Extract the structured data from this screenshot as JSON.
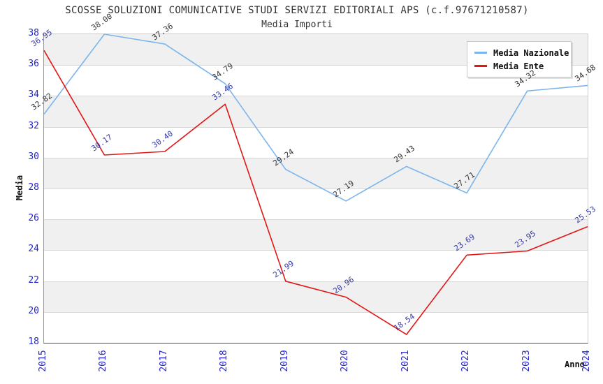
{
  "title": "SCOSSE SOLUZIONI COMUNICATIVE STUDI SERVIZI EDITORIALI APS (c.f.97671210587)",
  "subtitle": "Media Importi",
  "chart_data": {
    "type": "line",
    "x": [
      2015,
      2016,
      2017,
      2018,
      2019,
      2020,
      2021,
      2022,
      2023,
      2024
    ],
    "series": [
      {
        "name": "Media Nazionale",
        "color": "#7cb5ec",
        "label_color": "#333333",
        "values": [
          32.82,
          38.0,
          37.36,
          34.79,
          29.24,
          27.19,
          29.43,
          27.71,
          34.32,
          34.68
        ]
      },
      {
        "name": "Media Ente",
        "color": "#e01717",
        "label_color": "#3539a8",
        "values": [
          36.95,
          30.17,
          30.4,
          33.46,
          21.99,
          20.96,
          18.54,
          23.69,
          23.95,
          25.53
        ]
      }
    ],
    "xlabel": "Anno",
    "ylabel": "Media",
    "ylim": [
      18,
      38
    ],
    "ytick_step": 2,
    "grid": true,
    "band_colors": [
      "#f0f0f0",
      "#ffffff"
    ],
    "gridline_color": "#d9d9d9",
    "tick_label_color": "#2525cc",
    "legend_position": "top-right",
    "value_label_decimals": 2
  }
}
